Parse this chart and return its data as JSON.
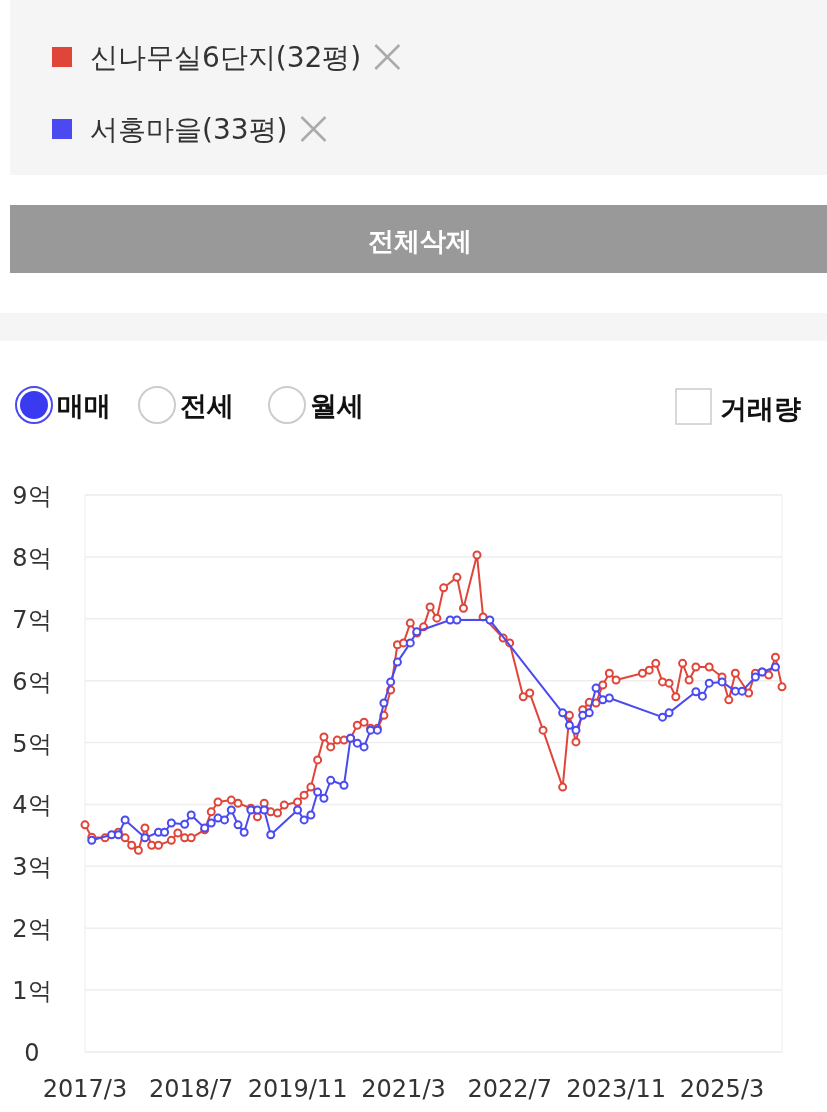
{
  "chart_data": {
    "type": "line",
    "legend": "top",
    "grid": "y",
    "marker": "circle",
    "line_style": "solid",
    "annotations": [
      "전체삭제",
      "매매",
      "전세",
      "월세",
      "거래량"
    ],
    "xlim": [
      "2017-03",
      "2025-12"
    ],
    "xticks": [
      {
        "value": "2017-03",
        "label": "2017/3"
      },
      {
        "value": "2018-07",
        "label": "2018/7"
      },
      {
        "value": "2019-11",
        "label": "2019/11"
      },
      {
        "value": "2021-03",
        "label": "2021/3"
      },
      {
        "value": "2022-07",
        "label": "2022/7"
      },
      {
        "value": "2023-11",
        "label": "2023/11"
      },
      {
        "value": "2025-03",
        "label": "2025/3"
      }
    ],
    "ylim": [
      0,
      9
    ],
    "yticks": [
      0,
      {
        "value": 1,
        "label": "1억"
      },
      {
        "value": 2,
        "label": "2억"
      },
      {
        "value": 3,
        "label": "3억"
      },
      {
        "value": 4,
        "label": "4억"
      },
      {
        "value": 5,
        "label": "5억"
      },
      {
        "value": 6,
        "label": "6억"
      },
      {
        "value": 7,
        "label": "7억"
      },
      {
        "value": 8,
        "label": "8억"
      },
      {
        "value": 9,
        "label": "9억"
      }
    ],
    "series": [
      {
        "name": "신나무실6단지(32평)",
        "color": "#e0453a",
        "x": [
          "2017-03",
          "2017-04",
          "2017-06",
          "2017-08",
          "2017-09",
          "2017-10",
          "2017-11",
          "2017-12",
          "2018-01",
          "2018-02",
          "2018-04",
          "2018-05",
          "2018-06",
          "2018-07",
          "2018-09",
          "2018-10",
          "2018-11",
          "2019-01",
          "2019-02",
          "2019-04",
          "2019-05",
          "2019-06",
          "2019-07",
          "2019-08",
          "2019-09",
          "2019-11",
          "2019-12",
          "2020-01",
          "2020-02",
          "2020-03",
          "2020-04",
          "2020-05",
          "2020-06",
          "2020-07",
          "2020-08",
          "2020-09",
          "2020-10",
          "2020-11",
          "2020-12",
          "2021-01",
          "2021-02",
          "2021-03",
          "2021-04",
          "2021-05",
          "2021-06",
          "2021-07",
          "2021-08",
          "2021-09",
          "2021-11",
          "2021-12",
          "2022-02",
          "2022-03",
          "2022-06",
          "2022-07",
          "2022-09",
          "2022-10",
          "2022-12",
          "2023-03",
          "2023-04",
          "2023-05",
          "2023-06",
          "2023-07",
          "2023-08",
          "2023-09",
          "2023-10",
          "2023-11",
          "2024-03",
          "2024-04",
          "2024-05",
          "2024-06",
          "2024-07",
          "2024-08",
          "2024-09",
          "2024-10",
          "2024-11",
          "2025-01",
          "2025-03",
          "2025-04",
          "2025-05",
          "2025-07",
          "2025-08",
          "2025-09",
          "2025-10",
          "2025-11",
          "2025-12"
        ],
        "values": [
          3.67,
          3.47,
          3.46,
          3.55,
          3.46,
          3.34,
          3.26,
          3.62,
          3.34,
          3.34,
          3.42,
          3.54,
          3.46,
          3.46,
          3.59,
          3.88,
          4.04,
          4.07,
          4.02,
          3.94,
          3.8,
          4.02,
          3.88,
          3.86,
          3.99,
          4.04,
          4.15,
          4.28,
          4.72,
          5.09,
          4.93,
          5.04,
          5.04,
          5.07,
          5.28,
          5.33,
          5.23,
          5.23,
          5.44,
          5.85,
          6.58,
          6.61,
          6.93,
          6.77,
          6.87,
          7.19,
          7.01,
          7.5,
          7.67,
          7.17,
          8.03,
          7.03,
          6.69,
          6.61,
          5.74,
          5.8,
          5.2,
          4.28,
          5.44,
          5.01,
          5.53,
          5.65,
          5.64,
          5.93,
          6.12,
          6.01,
          6.12,
          6.17,
          6.28,
          5.98,
          5.96,
          5.74,
          6.28,
          6.01,
          6.22,
          6.22,
          6.06,
          5.69,
          6.12,
          5.8,
          6.12,
          6.14,
          6.09,
          6.38,
          5.9
        ]
      },
      {
        "name": "서홍마을(33평)",
        "color": "#4a4af0",
        "x": [
          "2017-04",
          "2017-07",
          "2017-08",
          "2017-09",
          "2017-12",
          "2018-02",
          "2018-03",
          "2018-04",
          "2018-06",
          "2018-07",
          "2018-09",
          "2018-10",
          "2018-11",
          "2018-12",
          "2019-01",
          "2019-02",
          "2019-03",
          "2019-04",
          "2019-05",
          "2019-06",
          "2019-07",
          "2019-11",
          "2019-12",
          "2020-01",
          "2020-02",
          "2020-03",
          "2020-04",
          "2020-06",
          "2020-07",
          "2020-08",
          "2020-09",
          "2020-10",
          "2020-11",
          "2020-12",
          "2021-01",
          "2021-02",
          "2021-04",
          "2021-05",
          "2021-10",
          "2021-11",
          "2022-04",
          "2023-03",
          "2023-04",
          "2023-05",
          "2023-06",
          "2023-07",
          "2023-08",
          "2023-09",
          "2023-10",
          "2024-06",
          "2024-07",
          "2024-11",
          "2024-12",
          "2025-01",
          "2025-03",
          "2025-05",
          "2025-06",
          "2025-08",
          "2025-09",
          "2025-11"
        ],
        "values": [
          3.42,
          3.51,
          3.51,
          3.75,
          3.46,
          3.55,
          3.55,
          3.7,
          3.68,
          3.83,
          3.62,
          3.7,
          3.78,
          3.75,
          3.91,
          3.67,
          3.55,
          3.91,
          3.91,
          3.91,
          3.51,
          3.91,
          3.75,
          3.83,
          4.2,
          4.1,
          4.39,
          4.31,
          5.07,
          4.99,
          4.93,
          5.2,
          5.2,
          5.64,
          5.98,
          6.3,
          6.61,
          6.79,
          6.98,
          6.98,
          6.98,
          5.48,
          5.28,
          5.2,
          5.44,
          5.48,
          5.88,
          5.69,
          5.72,
          5.41,
          5.48,
          5.82,
          5.75,
          5.96,
          5.98,
          5.83,
          5.83,
          6.06,
          6.14,
          6.22
        ]
      }
    ]
  }
}
